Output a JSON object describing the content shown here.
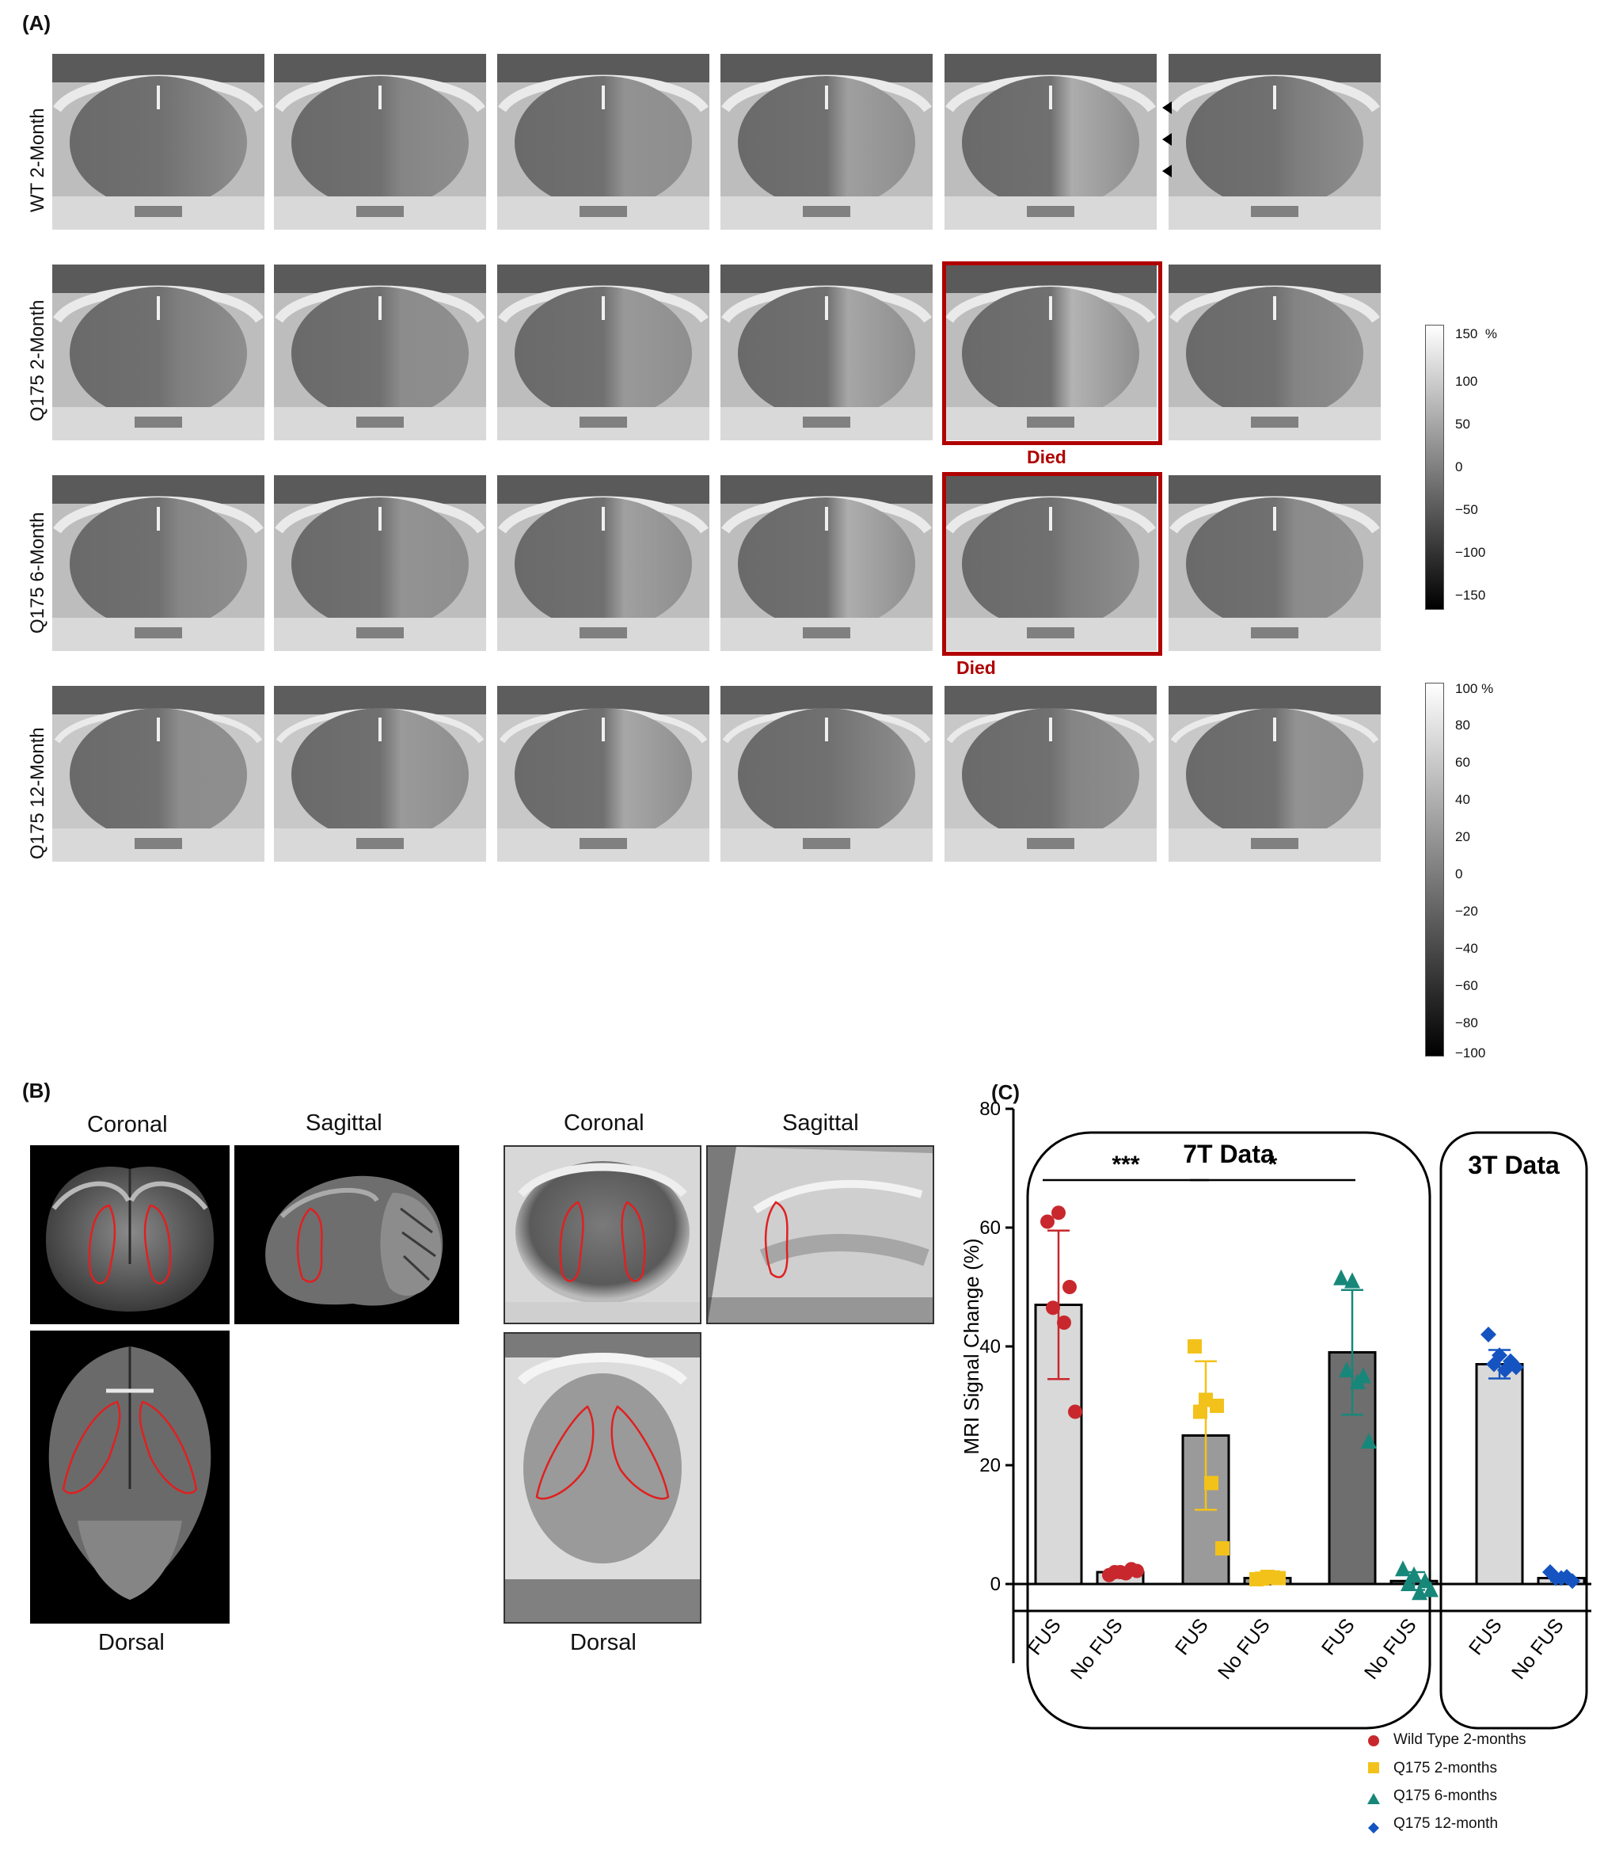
{
  "panel_a": {
    "letter": "(A)",
    "rows": [
      {
        "label": "WT 2-Month"
      },
      {
        "label": "Q175 2-Month"
      },
      {
        "label": "Q175 6-Month"
      },
      {
        "label": "Q175 12-Month"
      }
    ],
    "died_label": "Died",
    "colorbar_7t": {
      "unit": "%",
      "ticks": [
        "150",
        "100",
        "50",
        "0",
        "−50",
        "−100",
        "−150"
      ]
    },
    "colorbar_3t": {
      "unit": "%",
      "ticks": [
        "100",
        "80",
        "60",
        "40",
        "20",
        "0",
        "−20",
        "−40",
        "−60",
        "−80",
        "−100"
      ]
    }
  },
  "panel_b": {
    "letter": "(B)",
    "coronal": "Coronal",
    "sagittal": "Sagittal",
    "dorsal": "Dorsal"
  },
  "panel_c": {
    "letter": "(C)",
    "group_7t": "7T Data",
    "group_3t": "3T Data",
    "sig_left": "***",
    "sig_right": "*",
    "legend": [
      {
        "label": "Wild Type 2-months",
        "color": "#c8282d",
        "marker": "circle"
      },
      {
        "label": "Q175 2-months",
        "color": "#f2c21a",
        "marker": "square"
      },
      {
        "label": "Q175 6-months",
        "color": "#17877a",
        "marker": "triangle"
      },
      {
        "label": "Q175 12-month",
        "color": "#1554c0",
        "marker": "diamond"
      }
    ]
  },
  "chart_data": {
    "type": "bar",
    "ylabel": "MRI Signal Change (%)",
    "ylim": [
      0,
      80
    ],
    "yticks": [
      0,
      20,
      40,
      60,
      80
    ],
    "categories": [
      "FUS",
      "No FUS",
      "FUS",
      "No FUS",
      "FUS",
      "No FUS",
      "FUS",
      "No FUS"
    ],
    "bars": [
      {
        "series": 0,
        "mean": 47,
        "sd": 12.5,
        "points": [
          61,
          62.5,
          50,
          46.5,
          44,
          29
        ],
        "fill": "#d9d9d9"
      },
      {
        "series": 0,
        "mean": 2,
        "sd": 0.6,
        "points": [
          1.5,
          2,
          2.5,
          2,
          1.8,
          2.2
        ],
        "fill": "#d9d9d9"
      },
      {
        "series": 1,
        "mean": 25,
        "sd": 12.5,
        "points": [
          40,
          31,
          30,
          29,
          17,
          6
        ],
        "fill": "#9a9a9a"
      },
      {
        "series": 1,
        "mean": 1,
        "sd": 0.5,
        "points": [
          0.8,
          1.2,
          1,
          0.9,
          1.1
        ],
        "fill": "#9a9a9a"
      },
      {
        "series": 2,
        "mean": 39,
        "sd": 10.5,
        "points": [
          51.5,
          51,
          35,
          36,
          34,
          24
        ],
        "fill": "#6e6e6e"
      },
      {
        "series": 2,
        "mean": 0.5,
        "sd": 1.5,
        "points": [
          2.5,
          1.5,
          0.5,
          0,
          -1.5,
          -1
        ],
        "fill": "#6e6e6e"
      },
      {
        "series": 3,
        "mean": 37,
        "sd": 2.4,
        "points": [
          42,
          38.5,
          37.5,
          37,
          36,
          36.5
        ],
        "fill": "#d9d9d9"
      },
      {
        "series": 3,
        "mean": 1,
        "sd": 0.5,
        "points": [
          2,
          1,
          0.5,
          1,
          1.2
        ],
        "fill": "#d9d9d9"
      }
    ],
    "significance": [
      {
        "from": 0,
        "to": 2,
        "y": 68,
        "label": "***"
      },
      {
        "from": 2,
        "to": 4,
        "y": 68,
        "label": "*"
      }
    ]
  }
}
